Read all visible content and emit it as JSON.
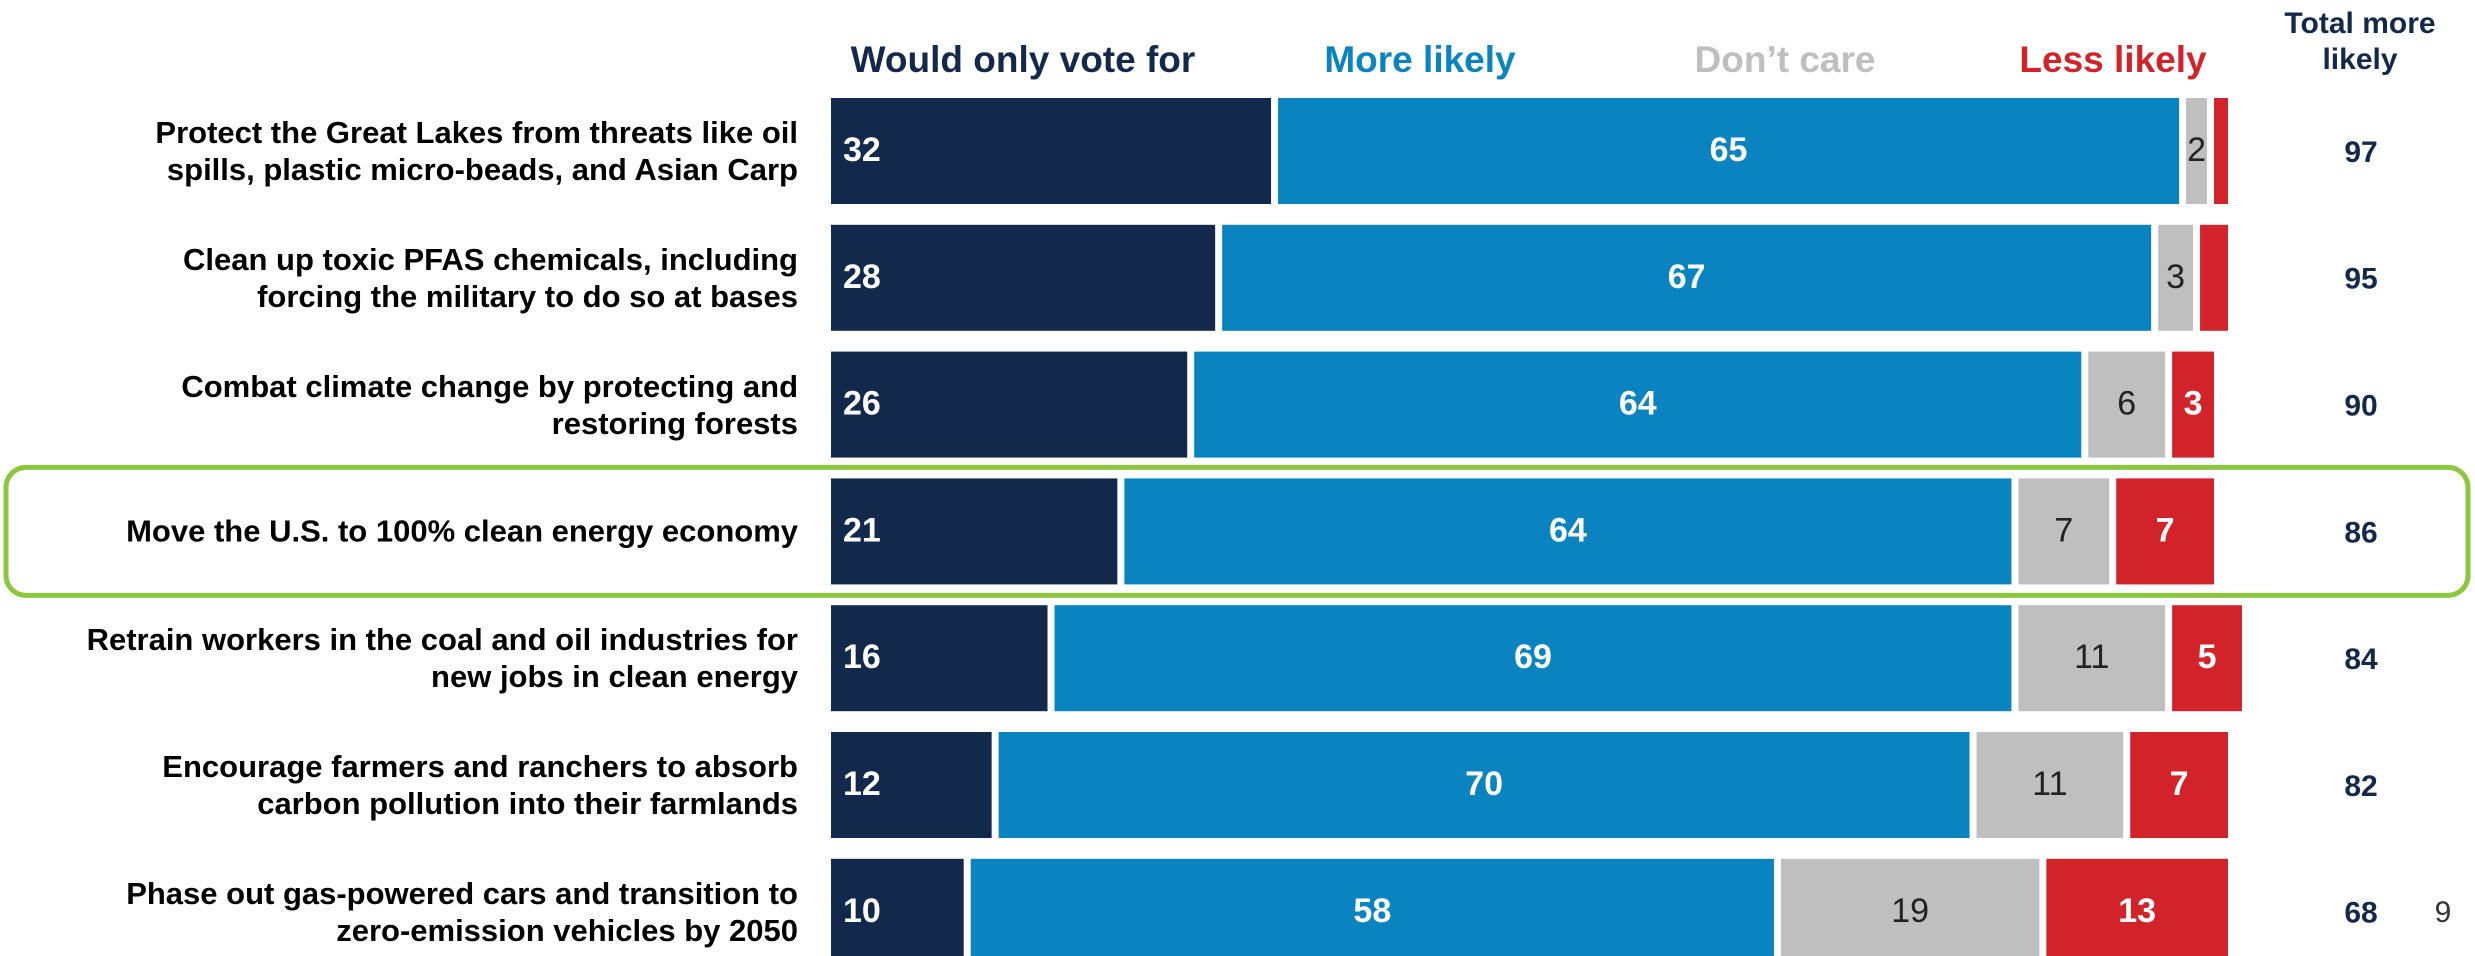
{
  "chart_data": {
    "type": "stacked-bar-horizontal",
    "categories": [
      "Protect the Great Lakes from threats like oil\nspills, plastic micro-beads, and Asian Carp",
      "Clean up toxic PFAS chemicals, including\nforcing the military to do so at bases",
      "Combat climate change by protecting and\nrestoring forests",
      "Move the U.S. to 100% clean energy economy",
      "Retrain workers in the coal and oil industries for\nnew jobs in clean energy",
      "Encourage farmers and ranchers to absorb\ncarbon pollution into their farmlands",
      "Phase out gas-powered cars and transition to\nzero-emission vehicles by 2050"
    ],
    "series": [
      {
        "name": "Would only vote for",
        "color": "#13294b",
        "values": [
          32,
          28,
          26,
          21,
          16,
          12,
          10
        ]
      },
      {
        "name": "More likely",
        "color": "#0a84c1",
        "values": [
          65,
          67,
          64,
          64,
          69,
          70,
          58
        ]
      },
      {
        "name": "Don’t care",
        "color": "#bfbfbf",
        "values": [
          2,
          3,
          6,
          7,
          11,
          11,
          19
        ]
      },
      {
        "name": "Less likely",
        "color": "#d2232a",
        "values": [
          1,
          2,
          3,
          7,
          5,
          7,
          13
        ],
        "value_labels": [
          null,
          null,
          "3",
          "7",
          "5",
          "7",
          "13"
        ]
      }
    ],
    "total": {
      "name": "Total more likely",
      "values": [
        97,
        95,
        90,
        86,
        84,
        82,
        68
      ]
    },
    "xlim": [
      0,
      100
    ],
    "highlight": 3,
    "page_number": "9"
  }
}
